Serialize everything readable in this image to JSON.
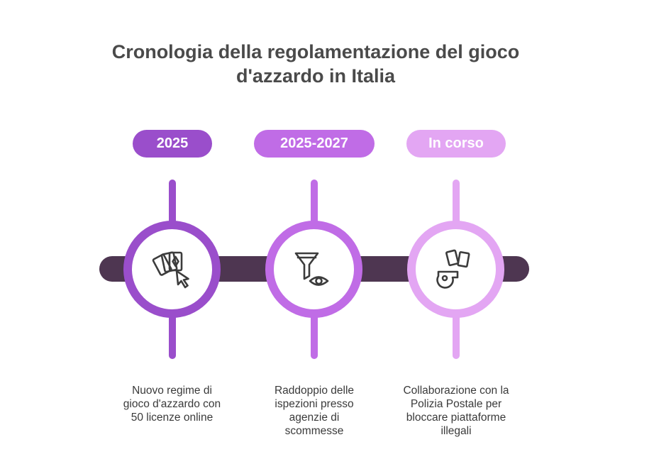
{
  "title": {
    "line1": "Cronologia della regolamentazione del gioco",
    "line2": "d'azzardo in Italia"
  },
  "stages": [
    {
      "label": "2025",
      "color": "#9a4ecb",
      "icon": "playing-cards-cursor-icon",
      "description_lines": [
        "Nuovo regime di",
        "gioco d'azzardo con",
        "50 licenze online"
      ]
    },
    {
      "label": "2025-2027",
      "color": "#c06ce6",
      "icon": "filter-eye-icon",
      "description_lines": [
        "Raddoppio delle",
        "ispezioni presso",
        "agenzie di",
        "scommesse"
      ]
    },
    {
      "label": "In corso",
      "color": "#e3a6f3",
      "icon": "whistle-cards-icon",
      "description_lines": [
        "Collaborazione con la",
        "Polizia Postale per",
        "bloccare piattaforme",
        "illegali"
      ]
    }
  ],
  "colors": {
    "timeline_bar": "#4e3651",
    "icon_stroke": "#3c3c3c"
  }
}
